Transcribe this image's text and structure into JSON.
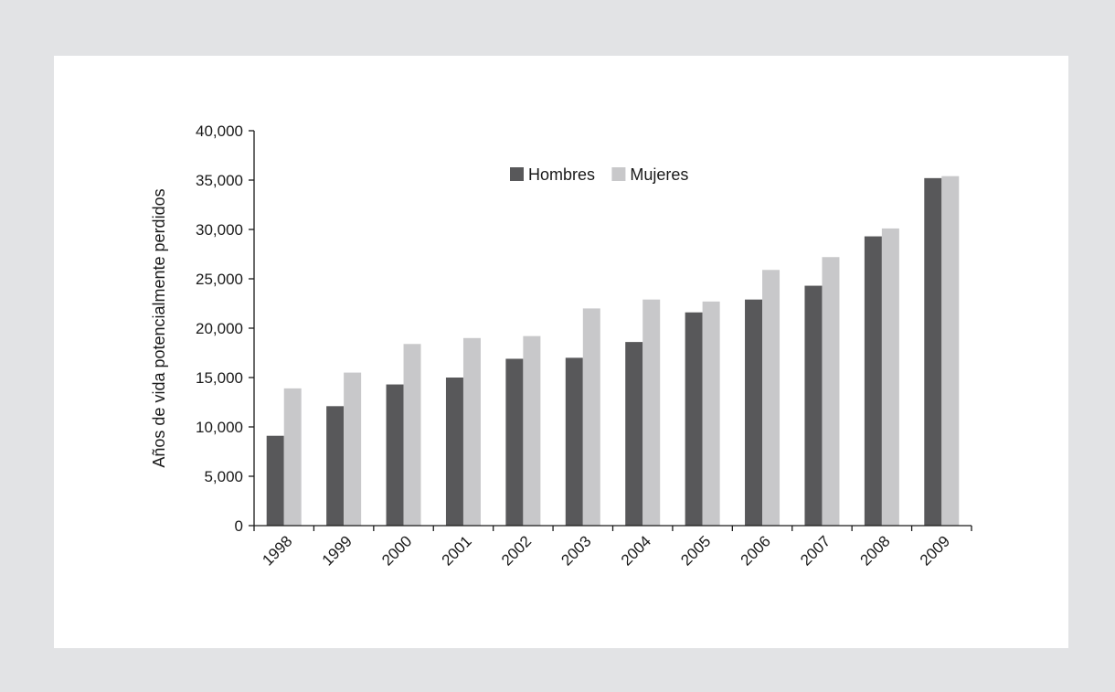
{
  "chart_data": {
    "type": "bar",
    "title": "",
    "xlabel": "",
    "ylabel": "Años de vida potencialmente perdidos",
    "ylim": [
      0,
      40000
    ],
    "ytick_values": [
      0,
      5000,
      10000,
      15000,
      20000,
      25000,
      30000,
      35000,
      40000
    ],
    "ytick_labels": [
      "0",
      "5,000",
      "10,000",
      "15,000",
      "20,000",
      "25,000",
      "30,000",
      "35,000",
      "40,000"
    ],
    "categories": [
      "1998",
      "1999",
      "2000",
      "2001",
      "2002",
      "2003",
      "2004",
      "2005",
      "2006",
      "2007",
      "2008",
      "2009"
    ],
    "series": [
      {
        "name": "Hombres",
        "color": "#58585a",
        "values": [
          9100,
          12100,
          14300,
          15000,
          16900,
          17000,
          18600,
          21600,
          22900,
          24300,
          29300,
          35200
        ]
      },
      {
        "name": "Mujeres",
        "color": "#c8c8ca",
        "values": [
          13900,
          15500,
          18400,
          19000,
          19200,
          22000,
          22900,
          22700,
          25900,
          27200,
          30100,
          35400
        ]
      }
    ],
    "legend_position": "top-center",
    "grid": false
  }
}
